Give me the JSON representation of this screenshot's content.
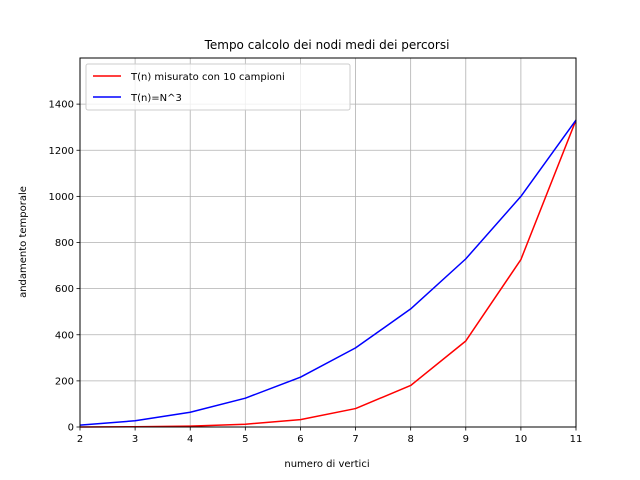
{
  "chart_data": {
    "type": "line",
    "title": "Tempo calcolo dei nodi medi dei percorsi",
    "xlabel": "numero di vertici",
    "ylabel": "andamento temporale",
    "xlim": [
      2,
      11
    ],
    "ylim": [
      0,
      1600
    ],
    "x_ticks": [
      2,
      3,
      4,
      5,
      6,
      7,
      8,
      9,
      10,
      11
    ],
    "y_ticks": [
      0,
      200,
      400,
      600,
      800,
      1000,
      1200,
      1400
    ],
    "grid": true,
    "legend_position": "top-left",
    "x": [
      2,
      3,
      4,
      5,
      6,
      7,
      8,
      9,
      10,
      11
    ],
    "series": [
      {
        "name": "T(n) misurato con 10 campioni",
        "color": "#ff0000",
        "values": [
          0,
          1,
          4,
          12,
          32,
          80,
          180,
          373,
          726,
          1331
        ]
      },
      {
        "name": "T(n)=N^3",
        "color": "#0000ff",
        "values": [
          8,
          27,
          64,
          125,
          216,
          343,
          512,
          729,
          1000,
          1331
        ]
      }
    ]
  }
}
